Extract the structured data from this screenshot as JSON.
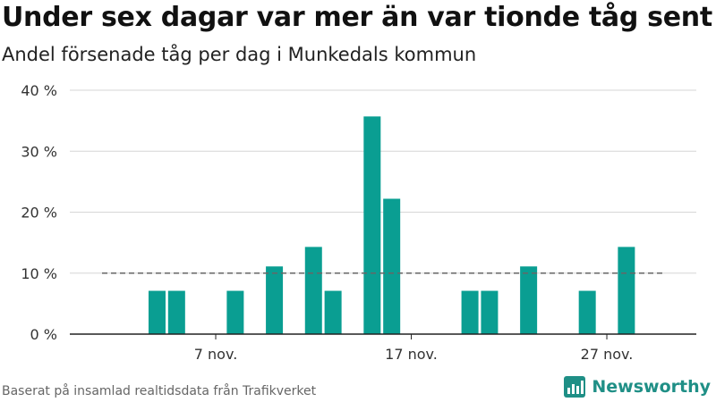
{
  "header": {
    "title": "Under sex dagar var mer än var tionde tåg sent",
    "subtitle": "Andel försenade tåg per dag i Munkedals kommun"
  },
  "footer": {
    "source": "Baserat på insamlad realtidsdata från Trafikverket",
    "brand": "Newsworthy",
    "brand_icon": "bar-chart-logo-icon"
  },
  "colors": {
    "bar": "#0a9e92",
    "reference_line": "#666666",
    "grid": "#d6d6d6",
    "axis": "#222222",
    "brand": "#1f8f86"
  },
  "chart_data": {
    "type": "bar",
    "x_unit": "day",
    "x_start": "2023-11-01",
    "x_end": "2023-11-30",
    "x_ticks": [
      {
        "date": "2023-11-07",
        "label": "7 nov."
      },
      {
        "date": "2023-11-17",
        "label": "17 nov."
      },
      {
        "date": "2023-11-27",
        "label": "27 nov."
      }
    ],
    "y_ticks": [
      {
        "value": 0,
        "label": "0 %"
      },
      {
        "value": 10,
        "label": "10 %"
      },
      {
        "value": 20,
        "label": "20 %"
      },
      {
        "value": 30,
        "label": "30 %"
      },
      {
        "value": 40,
        "label": "40 %"
      }
    ],
    "ylim": [
      0,
      40
    ],
    "grid": true,
    "reference_line": {
      "value": 10,
      "style": "dashed"
    },
    "bars": [
      {
        "date": "2023-11-04",
        "value": 7.1
      },
      {
        "date": "2023-11-05",
        "value": 7.1
      },
      {
        "date": "2023-11-08",
        "value": 7.1
      },
      {
        "date": "2023-11-10",
        "value": 11.1
      },
      {
        "date": "2023-11-12",
        "value": 14.3
      },
      {
        "date": "2023-11-13",
        "value": 7.1
      },
      {
        "date": "2023-11-15",
        "value": 35.7
      },
      {
        "date": "2023-11-16",
        "value": 22.2
      },
      {
        "date": "2023-11-20",
        "value": 7.1
      },
      {
        "date": "2023-11-21",
        "value": 7.1
      },
      {
        "date": "2023-11-23",
        "value": 11.1
      },
      {
        "date": "2023-11-26",
        "value": 7.1
      },
      {
        "date": "2023-11-28",
        "value": 14.3
      }
    ]
  }
}
